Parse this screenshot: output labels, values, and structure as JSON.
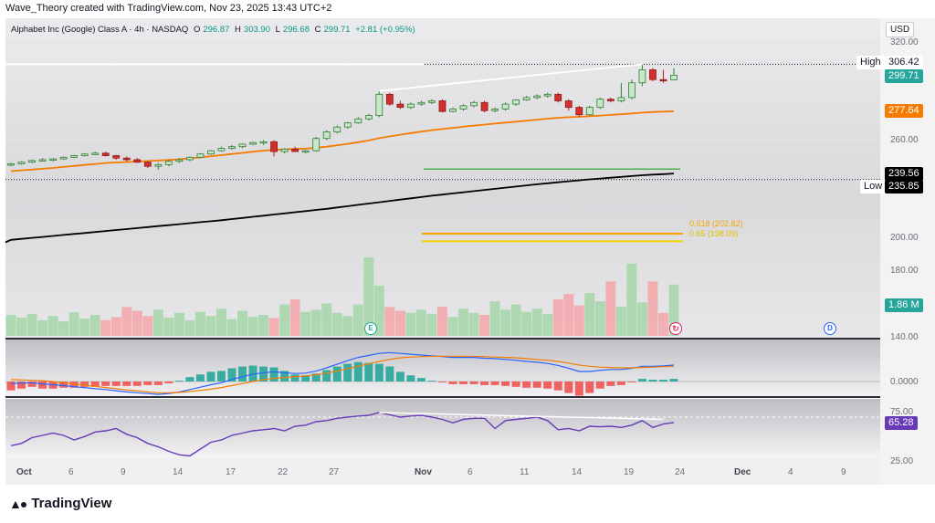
{
  "header": {
    "credit": "Wave_Theory created with TradingView.com, Nov 23, 2025 13:43 UTC+2"
  },
  "legend": {
    "symbol": "Alphabet Inc (Google) Class A · 4h · NASDAQ",
    "open_label": "O",
    "open": "296.87",
    "high_label": "H",
    "high": "303.90",
    "low_label": "L",
    "low": "296.68",
    "close_label": "C",
    "close": "299.71",
    "change": "+2.81 (+0.95%)"
  },
  "currency": "USD",
  "brand": "TradingView",
  "events": {
    "earnings": "E",
    "dividend": "D"
  },
  "colors": {
    "up": "#26a69a",
    "down": "#ef5350",
    "ema": "#f57c00",
    "sma": "#000000",
    "macd": "#2962ff",
    "signal": "#f57c00",
    "rsi": "#673ab7",
    "fib618": "#f7a600",
    "fib65": "#f2d600",
    "green_line": "#4caf50"
  },
  "price_scale": {
    "ticks": [
      "320.00",
      "260.00",
      "200.00",
      "180.00",
      "140.00"
    ]
  },
  "tags": {
    "high_label": "High",
    "high": "306.42",
    "last": "299.71",
    "ema": "277.64",
    "sma": "239.56",
    "low_label": "Low",
    "low": "235.85",
    "volume": "1.86 M",
    "macd_zero": "0.0000",
    "rsi": "65.28",
    "rsi_75": "75.00",
    "rsi_25": "25.00"
  },
  "fib_labels": {
    "f618": "0.618 (202.82)",
    "f65": "0.65 (198.09)"
  },
  "x_axis": {
    "labels": [
      "Oct",
      "6",
      "9",
      "14",
      "17",
      "22",
      "27",
      "Nov",
      "6",
      "11",
      "14",
      "19",
      "24",
      "Dec",
      "4",
      "9"
    ]
  },
  "chart_data": {
    "type": "candlestick",
    "title": "Alphabet Inc (Google) Class A · 4h · NASDAQ",
    "x_range": [
      "Oct",
      "9"
    ],
    "ylim": [
      140,
      325
    ],
    "candles": [
      [
        245,
        246,
        244,
        245.5
      ],
      [
        245.5,
        247,
        245,
        246.5
      ],
      [
        246.5,
        248,
        246,
        247.5
      ],
      [
        247.5,
        249,
        247,
        248
      ],
      [
        248,
        249,
        247,
        248.5
      ],
      [
        248.5,
        250,
        248,
        249.5
      ],
      [
        249.5,
        251,
        249,
        250.5
      ],
      [
        250.5,
        252,
        250,
        251.5
      ],
      [
        251.5,
        253,
        251,
        252
      ],
      [
        252,
        253,
        250,
        250.5
      ],
      [
        250.5,
        251,
        248,
        249
      ],
      [
        249,
        250,
        247,
        248
      ],
      [
        248,
        249,
        246,
        246.5
      ],
      [
        246.5,
        247,
        243,
        244
      ],
      [
        244,
        246,
        242,
        245
      ],
      [
        245,
        248,
        244,
        247
      ],
      [
        247,
        249,
        246,
        248
      ],
      [
        248,
        250,
        247,
        249.5
      ],
      [
        249.5,
        252,
        249,
        251.5
      ],
      [
        251.5,
        254,
        251,
        253.5
      ],
      [
        253.5,
        256,
        253,
        255
      ],
      [
        255,
        257,
        254,
        256
      ],
      [
        256,
        258,
        255,
        257.5
      ],
      [
        257.5,
        259,
        257,
        258.5
      ],
      [
        258.5,
        260,
        257,
        259
      ],
      [
        259,
        260,
        250,
        253
      ],
      [
        253,
        255,
        252,
        254.5
      ],
      [
        254.5,
        256,
        253,
        253
      ],
      [
        253,
        254,
        252,
        253.5
      ],
      [
        253.5,
        262,
        253,
        261
      ],
      [
        261,
        266,
        260,
        265
      ],
      [
        265,
        269,
        264,
        268
      ],
      [
        268,
        271,
        267,
        270.5
      ],
      [
        270.5,
        274,
        270,
        273
      ],
      [
        273,
        276,
        272,
        275
      ],
      [
        275,
        290,
        274,
        288
      ],
      [
        288,
        289,
        281,
        282
      ],
      [
        282,
        284,
        279,
        280
      ],
      [
        280,
        283,
        279,
        282
      ],
      [
        282,
        284,
        281,
        283
      ],
      [
        283,
        285,
        282,
        284
      ],
      [
        284,
        285,
        277,
        277.5
      ],
      [
        277.5,
        280,
        277,
        279
      ],
      [
        279,
        282,
        278,
        281
      ],
      [
        281,
        284,
        280,
        283
      ],
      [
        283,
        284,
        277,
        278
      ],
      [
        278,
        280,
        277,
        279
      ],
      [
        279,
        283,
        278,
        282
      ],
      [
        282,
        285,
        281,
        284.5
      ],
      [
        284.5,
        287,
        284,
        286
      ],
      [
        286,
        288,
        285,
        287
      ],
      [
        287,
        289,
        286,
        288
      ],
      [
        288,
        289,
        283,
        284
      ],
      [
        284,
        285,
        278,
        280
      ],
      [
        280,
        281,
        274,
        275.5
      ],
      [
        275.5,
        281,
        275,
        280
      ],
      [
        280,
        286,
        279,
        285
      ],
      [
        285,
        286,
        283,
        284
      ],
      [
        284,
        295,
        283,
        286
      ],
      [
        286,
        297,
        285,
        295
      ],
      [
        295,
        306.4,
        293,
        303
      ],
      [
        303,
        304,
        296,
        297
      ],
      [
        297,
        303,
        295,
        296.9
      ],
      [
        296.9,
        303.9,
        296.7,
        299.7
      ]
    ],
    "volume": [
      40,
      35,
      42,
      30,
      38,
      28,
      45,
      33,
      40,
      30,
      36,
      55,
      48,
      38,
      50,
      35,
      44,
      30,
      46,
      38,
      52,
      32,
      48,
      36,
      40,
      34,
      60,
      70,
      46,
      50,
      62,
      44,
      38,
      60,
      150,
      96,
      55,
      48,
      44,
      50,
      42,
      56,
      36,
      52,
      44,
      40,
      66,
      50,
      60,
      46,
      52,
      42,
      70,
      80,
      58,
      82,
      66,
      104,
      56,
      138,
      64,
      104,
      44,
      98
    ],
    "ema": [
      241,
      241.5,
      242,
      242.5,
      243,
      243.6,
      244.2,
      244.8,
      245.4,
      246,
      246.3,
      246.6,
      246.9,
      247.2,
      247.5,
      247.9,
      248.3,
      248.9,
      249.5,
      250.1,
      250.8,
      251.5,
      252.2,
      252.9,
      253.6,
      254,
      254.3,
      254.6,
      254.8,
      255.3,
      256,
      256.8,
      257.7,
      258.7,
      259.8,
      261.2,
      262.3,
      263.3,
      264.3,
      265.2,
      266.1,
      266.8,
      267.5,
      268.2,
      268.9,
      269.5,
      270.1,
      270.7,
      271.3,
      271.9,
      272.5,
      273.1,
      273.6,
      274,
      274.3,
      274.6,
      275,
      275.4,
      275.8,
      276.3,
      276.8,
      277.2,
      277.4,
      277.64
    ],
    "sma": [
      199,
      199.6,
      200.2,
      200.8,
      201.4,
      202,
      202.6,
      203.2,
      203.8,
      204.4,
      205,
      205.6,
      206.2,
      206.8,
      207.4,
      208,
      208.6,
      209.2,
      209.8,
      210.4,
      211,
      211.7,
      212.4,
      213.1,
      213.8,
      214.5,
      215.2,
      215.9,
      216.6,
      217.3,
      218,
      218.8,
      219.6,
      220.4,
      221.2,
      222,
      222.8,
      223.6,
      224.4,
      225.2,
      226,
      226.7,
      227.4,
      228.1,
      228.8,
      229.5,
      230.2,
      230.9,
      231.6,
      232.3,
      233,
      233.6,
      234.2,
      234.8,
      235.4,
      236,
      236.5,
      237,
      237.5,
      238,
      238.5,
      238.9,
      239.2,
      239.56
    ],
    "macd": [
      -0.5,
      -0.4,
      -0.3,
      -0.6,
      -0.8,
      -1,
      -1.3,
      -1.5,
      -1.8,
      -2,
      -2.3,
      -2.6,
      -2.8,
      -3,
      -3.2,
      -3,
      -2.6,
      -2,
      -1.4,
      -0.8,
      -0.3,
      0.5,
      1.2,
      1.8,
      2.2,
      2.4,
      2.2,
      2,
      2.1,
      2.6,
      3.4,
      4.3,
      5.2,
      6,
      6.5,
      7,
      7.2,
      7,
      6.8,
      6.6,
      6.4,
      6.2,
      6,
      6,
      6,
      5.8,
      5.7,
      5.5,
      5.3,
      5,
      4.8,
      4.5,
      4,
      3.3,
      2.5,
      2.5,
      2.8,
      3,
      3,
      3.3,
      3.8,
      3.8,
      3.9,
      4.1
    ],
    "signal": [
      0.5,
      0.4,
      0.3,
      0.2,
      0,
      -0.3,
      -0.6,
      -0.9,
      -1.2,
      -1.5,
      -1.8,
      -2.1,
      -2.3,
      -2.6,
      -2.8,
      -2.8,
      -2.7,
      -2.5,
      -2.2,
      -1.9,
      -1.5,
      -1,
      -0.5,
      0,
      0.5,
      0.8,
      1,
      1.2,
      1.4,
      1.7,
      2.1,
      2.6,
      3.2,
      3.8,
      4.4,
      5,
      5.5,
      5.9,
      6.1,
      6.2,
      6.3,
      6.3,
      6.3,
      6.3,
      6.3,
      6.2,
      6.1,
      6,
      5.9,
      5.7,
      5.5,
      5.3,
      5,
      4.6,
      4.1,
      3.8,
      3.6,
      3.5,
      3.4,
      3.4,
      3.5,
      3.6,
      3.7,
      3.8
    ],
    "rsi": [
      45,
      47,
      52,
      54,
      56,
      54,
      50,
      53,
      57,
      58,
      60,
      55,
      52,
      47,
      44,
      40,
      37,
      36,
      42,
      48,
      50,
      54,
      56,
      58,
      59,
      60,
      58,
      62,
      63,
      66,
      67,
      69,
      70,
      71,
      71.5,
      74,
      72,
      70,
      71,
      71.5,
      70,
      68,
      65,
      68,
      69,
      69,
      60,
      67,
      68,
      69,
      70,
      67,
      59,
      60,
      58,
      62,
      61.5,
      62,
      61,
      63,
      67,
      61,
      64,
      65.28
    ]
  }
}
